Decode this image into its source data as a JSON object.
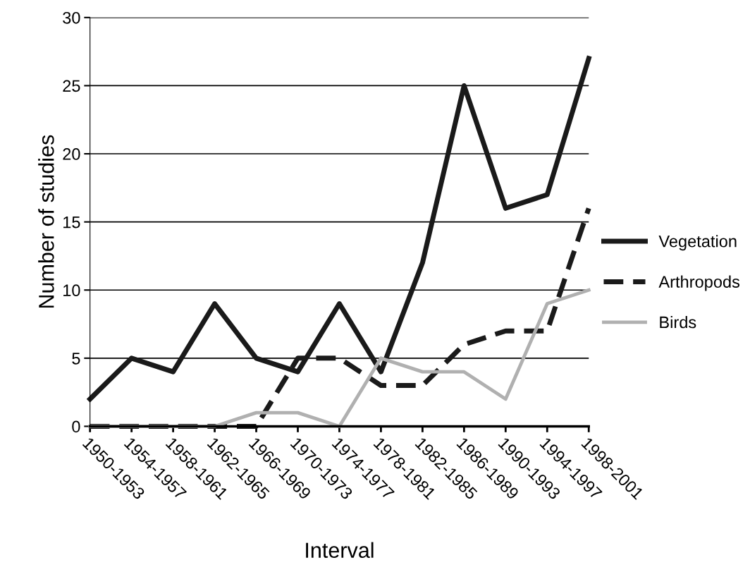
{
  "chart_data": {
    "type": "line",
    "xlabel": "Interval",
    "ylabel": "Number of studies",
    "categories": [
      "1950-1953",
      "1954-1957",
      "1958-1961",
      "1962-1965",
      "1966-1969",
      "1970-1973",
      "1974-1977",
      "1978-1981",
      "1982-1985",
      "1986-1989",
      "1990-1993",
      "1994-1997",
      "1998-2001"
    ],
    "series": [
      {
        "name": "Vegetation",
        "color": "#1a1a1a",
        "line_style": "solid",
        "values": [
          2,
          5,
          4,
          9,
          5,
          4,
          9,
          4,
          12,
          25,
          16,
          17,
          27
        ]
      },
      {
        "name": "Arthropods",
        "color": "#1a1a1a",
        "line_style": "dashed",
        "values": [
          0,
          0,
          0,
          0,
          0,
          5,
          5,
          3,
          3,
          6,
          7,
          7,
          16
        ]
      },
      {
        "name": "Birds",
        "color": "#b0b0b0",
        "line_style": "solid",
        "values": [
          0,
          0,
          0,
          0,
          1,
          1,
          0,
          5,
          4,
          4,
          2,
          9,
          10
        ]
      }
    ],
    "ylim": [
      0,
      30
    ],
    "yticks": [
      0,
      5,
      10,
      15,
      20,
      25,
      30
    ],
    "grid": "y",
    "legend": "right",
    "marker": "none"
  }
}
